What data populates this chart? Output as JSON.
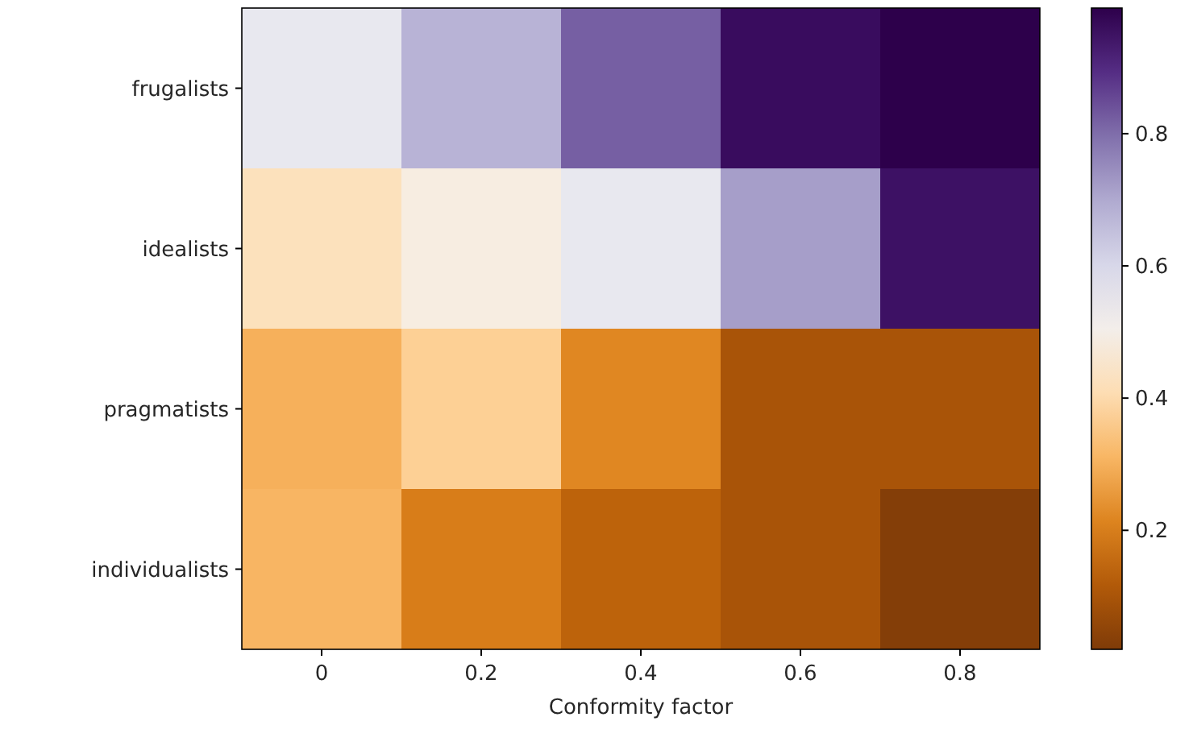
{
  "chart_data": {
    "type": "heatmap",
    "xlabel": "Conformity factor",
    "categories": [
      "0",
      "0.2",
      "0.4",
      "0.6",
      "0.8"
    ],
    "y_categories": [
      "frugalists",
      "idealists",
      "pragmatists",
      "individualists"
    ],
    "cells": [
      [
        0.55,
        0.68,
        0.82,
        0.96,
        0.99
      ],
      [
        0.42,
        0.48,
        0.55,
        0.72,
        0.95
      ],
      [
        0.3,
        0.37,
        0.22,
        0.1,
        0.1
      ],
      [
        0.31,
        0.2,
        0.14,
        0.1,
        0.03
      ]
    ],
    "clim": [
      0.02,
      0.99
    ],
    "cticks": [
      0.2,
      0.4,
      0.6,
      0.8
    ]
  }
}
